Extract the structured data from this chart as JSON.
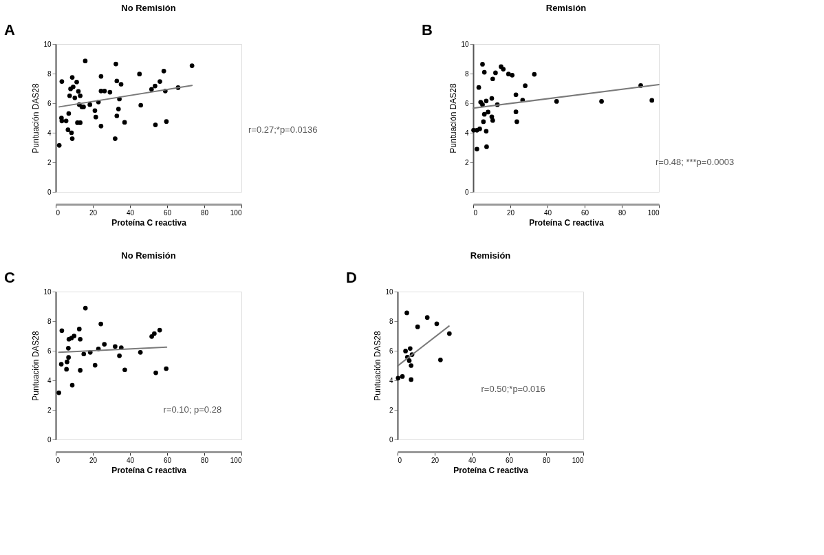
{
  "chart_data": [
    {
      "type": "scatter",
      "title": "No Remisión",
      "xlabel": "Proteína C reactiva",
      "ylabel": "Puntuación DAS28",
      "xlim": [
        0,
        100
      ],
      "ylim": [
        0,
        10
      ],
      "xticks": [
        0,
        20,
        40,
        60,
        80,
        100
      ],
      "yticks": [
        0,
        2,
        4,
        6,
        8,
        10
      ],
      "grid": false,
      "annotations": [
        "A",
        "r=0.27;*p=0.0136"
      ],
      "series": [
        {
          "color": "#000000",
          "marker": "circle",
          "x": [
            1.9,
            3.3,
            3.1,
            3.3,
            5.6,
            6.6,
            8.5,
            8.9,
            7.0,
            7.5,
            8.0,
            8.9,
            9.4,
            10.3,
            11.3,
            12.2,
            12.7,
            13.2,
            14.1,
            15.0,
            11.7,
            13.2,
            15.9,
            18.4,
            21.1,
            21.6,
            23.0,
            24.4,
            24.4,
            24.4,
            26.3,
            29.2,
            32.4,
            32.0,
            32.9,
            32.9,
            35.2,
            34.3,
            33.8,
            37.1,
            45.1,
            45.8,
            51.6,
            53.5,
            56.1,
            53.7,
            58.2,
            59.0,
            59.6,
            65.9,
            73.4
          ],
          "values": [
            3.15,
            7.46,
            5.0,
            4.8,
            4.8,
            4.2,
            4.0,
            3.6,
            5.3,
            6.5,
            6.97,
            7.74,
            7.1,
            6.36,
            7.43,
            6.8,
            5.9,
            6.5,
            5.75,
            5.75,
            4.68,
            4.68,
            8.85,
            5.9,
            5.5,
            5.06,
            6.08,
            7.81,
            6.82,
            4.45,
            6.82,
            6.74,
            8.65,
            3.6,
            5.14,
            7.5,
            7.28,
            6.28,
            5.6,
            4.7,
            7.97,
            5.86,
            6.94,
            7.16,
            7.46,
            4.53,
            8.17,
            6.82,
            4.76,
            7.05,
            8.53
          ]
        },
        {
          "type": "line",
          "color": "#7a7a7a",
          "x": [
            1.9,
            73.4
          ],
          "values": [
            5.75,
            7.2
          ]
        }
      ]
    },
    {
      "type": "scatter",
      "title": "Remisión",
      "xlabel": "Proteína C reactiva",
      "ylabel": "Puntuación DAS28",
      "xlim": [
        0,
        100
      ],
      "ylim": [
        0,
        10
      ],
      "xticks": [
        0,
        20,
        40,
        60,
        80,
        100
      ],
      "yticks": [
        0,
        2,
        4,
        6,
        8,
        10
      ],
      "grid": false,
      "annotations": [
        "B",
        "r=0.48; ***p=0.0003"
      ],
      "series": [
        {
          "color": "#000000",
          "marker": "circle",
          "x": [
            2.0,
            7.2,
            0.2,
            2.0,
            3.5,
            7.0,
            5.5,
            10.5,
            6.0,
            8.0,
            10.0,
            5.0,
            7.0,
            10.0,
            4.0,
            13.0,
            3.0,
            5.0,
            6.0,
            10.5,
            12.0,
            15.0,
            16.2,
            19.0,
            21.0,
            23.0,
            23.0,
            23.5,
            26.6,
            28.0,
            32.9,
            44.9,
            69.1,
            90.2,
            96.2
          ],
          "values": [
            2.89,
            3.05,
            4.17,
            4.17,
            4.26,
            4.1,
            4.75,
            4.83,
            5.25,
            5.4,
            5.08,
            5.9,
            6.15,
            6.32,
            6.07,
            5.9,
            7.06,
            8.63,
            8.09,
            7.64,
            8.05,
            8.47,
            8.3,
            7.97,
            7.89,
            6.57,
            5.41,
            4.75,
            6.2,
            7.18,
            7.95,
            6.12,
            6.12,
            7.19,
            6.19
          ]
        },
        {
          "type": "line",
          "color": "#7a7a7a",
          "x": [
            0,
            100
          ],
          "values": [
            5.66,
            7.26
          ]
        }
      ]
    },
    {
      "type": "scatter",
      "title": "No Remisión",
      "xlabel": "Proteína C reactiva",
      "ylabel": "Puntuación DAS28",
      "xlim": [
        0,
        100
      ],
      "ylim": [
        0,
        10
      ],
      "xticks": [
        0,
        20,
        40,
        60,
        80,
        100
      ],
      "yticks": [
        0,
        2,
        4,
        6,
        8,
        10
      ],
      "grid": false,
      "annotations": [
        "C",
        "r=0.10; p=0.28"
      ],
      "series": [
        {
          "color": "#000000",
          "marker": "circle",
          "x": [
            1.7,
            3.3,
            3.0,
            5.8,
            6.1,
            6.9,
            6.8,
            7.1,
            8.5,
            9.9,
            8.9,
            12.7,
            13.2,
            13.2,
            15.1,
            16.0,
            18.6,
            21.2,
            23.0,
            24.3,
            26.2,
            32.0,
            34.3,
            35.3,
            37.2,
            45.6,
            51.7,
            53.1,
            56.0,
            53.9,
            59.5
          ],
          "values": [
            3.16,
            7.36,
            5.09,
            4.75,
            5.25,
            5.55,
            6.17,
            6.78,
            6.86,
            7.0,
            3.67,
            7.47,
            6.78,
            4.68,
            5.78,
            8.88,
            5.89,
            5.02,
            6.12,
            7.81,
            6.44,
            6.29,
            5.66,
            6.21,
            4.71,
            5.89,
            6.96,
            7.16,
            7.39,
            4.51,
            4.79
          ]
        },
        {
          "type": "line",
          "color": "#7a7a7a",
          "x": [
            1.7,
            59.7
          ],
          "values": [
            5.89,
            6.24
          ]
        }
      ]
    },
    {
      "type": "scatter",
      "title": "Remisión",
      "xlabel": "Proteína C reactiva",
      "ylabel": "Puntuación DAS28",
      "xlim": [
        0,
        100
      ],
      "ylim": [
        0,
        10
      ],
      "xticks": [
        0,
        20,
        40,
        60,
        80,
        100
      ],
      "yticks": [
        0,
        2,
        4,
        6,
        8,
        10
      ],
      "grid": false,
      "annotations": [
        "D",
        "r=0.50;*p=0.016"
      ],
      "series": [
        {
          "color": "#000000",
          "marker": "circle",
          "x": [
            5.0,
            16.0,
            10.8,
            21.1,
            27.9,
            23.1,
            0.3,
            2.6,
            7.3,
            4.3,
            6.8,
            7.8,
            6.3,
            7.3,
            5.3
          ],
          "values": [
            8.56,
            8.25,
            7.62,
            7.82,
            7.16,
            5.38,
            4.15,
            4.26,
            4.05,
            5.98,
            6.15,
            5.74,
            5.33,
            5.0,
            5.57
          ]
        },
        {
          "type": "line",
          "color": "#7a7a7a",
          "x": [
            0,
            27.7
          ],
          "values": [
            4.97,
            7.67
          ]
        }
      ]
    }
  ]
}
